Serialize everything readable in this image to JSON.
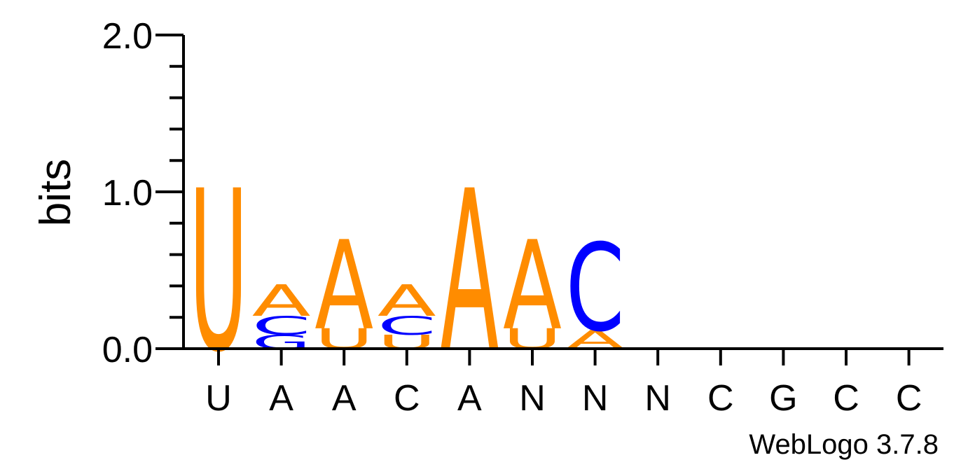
{
  "chart_data": {
    "type": "sequence-logo",
    "ylabel": "bits",
    "ylim": [
      0,
      2
    ],
    "yticks": [
      "0.0",
      "1.0",
      "2.0"
    ],
    "y_minor_step": 0.2,
    "positions": [
      "U",
      "A",
      "A",
      "C",
      "A",
      "N",
      "N",
      "N",
      "C",
      "G",
      "C",
      "C"
    ],
    "stacks": [
      [
        {
          "base": "U",
          "bits": 1.03
        }
      ],
      [
        {
          "base": "G",
          "bits": 0.09
        },
        {
          "base": "C",
          "bits": 0.12
        },
        {
          "base": "A",
          "bits": 0.2
        }
      ],
      [
        {
          "base": "U",
          "bits": 0.13
        },
        {
          "base": "A",
          "bits": 0.57
        }
      ],
      [
        {
          "base": "U",
          "bits": 0.09
        },
        {
          "base": "C",
          "bits": 0.12
        },
        {
          "base": "A",
          "bits": 0.2
        }
      ],
      [
        {
          "base": "A",
          "bits": 1.03
        }
      ],
      [
        {
          "base": "U",
          "bits": 0.13
        },
        {
          "base": "A",
          "bits": 0.57
        }
      ],
      [
        {
          "base": "A",
          "bits": 0.12
        },
        {
          "base": "C",
          "bits": 0.56
        }
      ],
      [],
      [],
      [],
      [],
      []
    ],
    "colors": {
      "A": "#ff8c00",
      "U": "#ff8c00",
      "C": "#0000ff",
      "G": "#0000ff"
    }
  },
  "credit": "WebLogo 3.7.8"
}
